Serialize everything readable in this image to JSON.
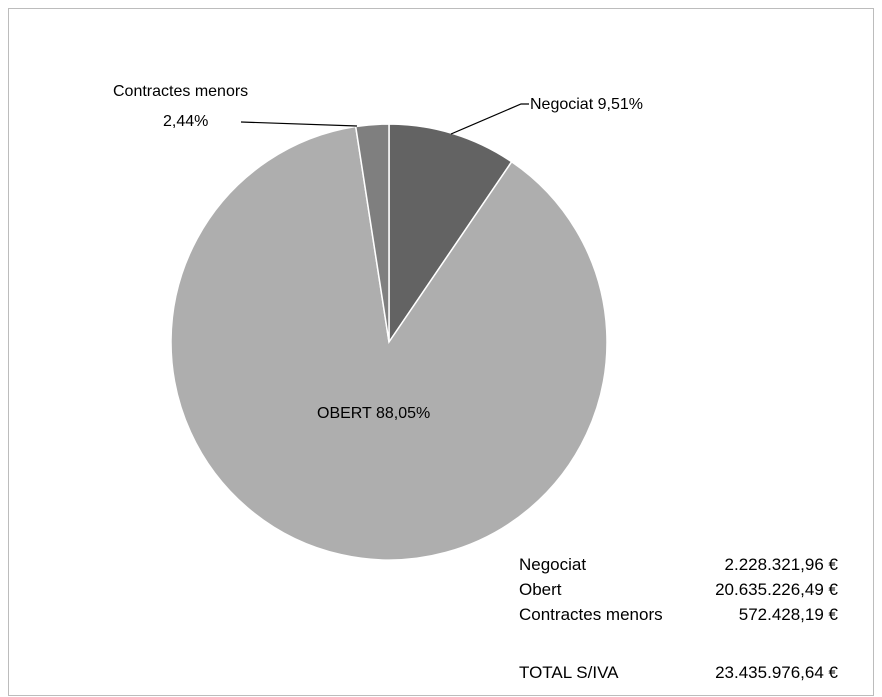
{
  "chart_data": {
    "type": "pie",
    "slices": [
      {
        "name": "Negociat",
        "label": "Negociat 9,51%",
        "value": 9.51,
        "color": "#636363"
      },
      {
        "name": "OBERT",
        "label": "OBERT 88,05%",
        "value": 88.05,
        "color": "#aeaeae"
      },
      {
        "name": "Contractes menors",
        "label_line1": "Contractes menors",
        "label_line2": "2,44%",
        "value": 2.44,
        "color": "#7f7f7f"
      }
    ]
  },
  "summary": {
    "rows": [
      {
        "name": "Negociat",
        "amount": "2.228.321,96 €"
      },
      {
        "name": "Obert",
        "amount": "20.635.226,49 €"
      },
      {
        "name": "Contractes menors",
        "amount": "572.428,19 €"
      }
    ],
    "total": {
      "name": "TOTAL S/IVA",
      "amount": "23.435.976,64 €"
    }
  }
}
